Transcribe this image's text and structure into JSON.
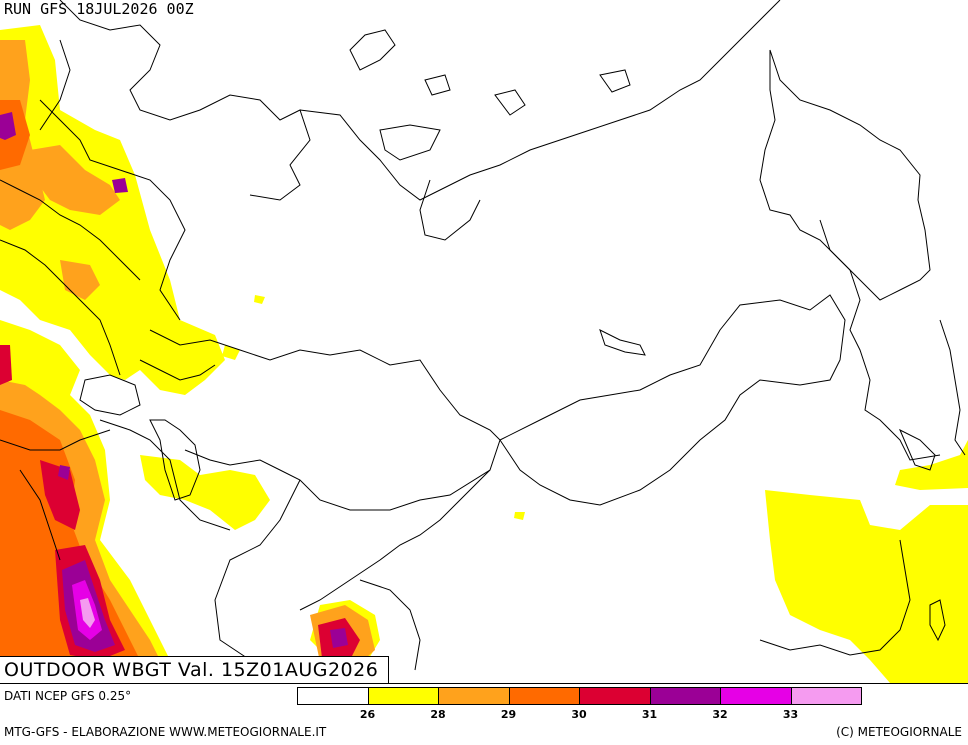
{
  "header": {
    "run_label": "RUN GFS 18JUL2026 00Z"
  },
  "title": {
    "main": "OUTDOOR WBGT Val. 15Z01AUG2026"
  },
  "source": "DATI NCEP GFS 0.25°",
  "footer": {
    "left": "MTG-GFS - ELABORAZIONE WWW.METEOGIORNALE.IT",
    "right": "(C) METEOGIORNALE"
  },
  "legend": {
    "colors": [
      "#ffffff",
      "#ffff00",
      "#ffa21c",
      "#ff6a00",
      "#dc0032",
      "#9b0096",
      "#e600e6",
      "#f59bf0"
    ],
    "labels": [
      "26",
      "28",
      "29",
      "30",
      "31",
      "32",
      "33"
    ]
  },
  "colors": {
    "yellow": "#ffff00",
    "light_orange": "#ffa21c",
    "orange": "#ff6a00",
    "red": "#dc0032",
    "purple": "#9b0096",
    "magenta": "#e600e6",
    "pink": "#f59bf0",
    "borders": "#000000"
  }
}
